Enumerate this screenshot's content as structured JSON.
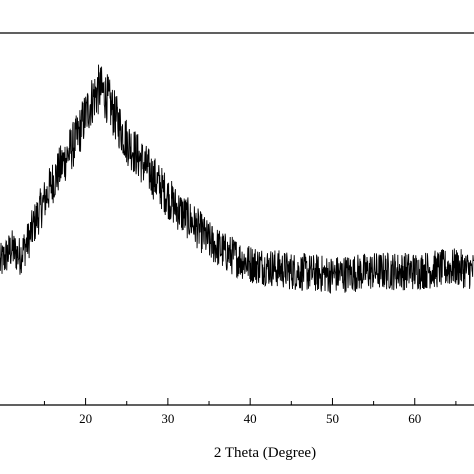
{
  "chart_data": {
    "type": "line",
    "title": "",
    "xlabel": "2 Theta (Degree)",
    "ylabel": "",
    "xlim": [
      9.6,
      67.2
    ],
    "ylim": [
      0,
      100
    ],
    "xticks": [
      20,
      30,
      40,
      50,
      60
    ],
    "xtick_labels": [
      "20",
      "30",
      "40",
      "50",
      "60"
    ],
    "minor_xticks": [
      15,
      25,
      35,
      45,
      55,
      65
    ],
    "grid": false,
    "legend": "none",
    "line_color": "#000000",
    "description_of_trend_points": {
      "x": [
        9.6,
        11,
        12,
        13,
        14,
        15,
        16,
        17,
        18,
        19,
        20,
        21,
        21.7,
        22.5,
        23.5,
        25,
        27,
        29,
        31,
        33,
        35,
        37,
        40,
        45,
        50,
        55,
        60,
        65,
        67.2
      ],
      "y": [
        38,
        42,
        40,
        44,
        50,
        55,
        60,
        64,
        68,
        72,
        78,
        83,
        85,
        83,
        78,
        71,
        65,
        59,
        53,
        49,
        44,
        41,
        38,
        36,
        35,
        36,
        36,
        37,
        36
      ]
    },
    "noise_amplitude": 7
  }
}
